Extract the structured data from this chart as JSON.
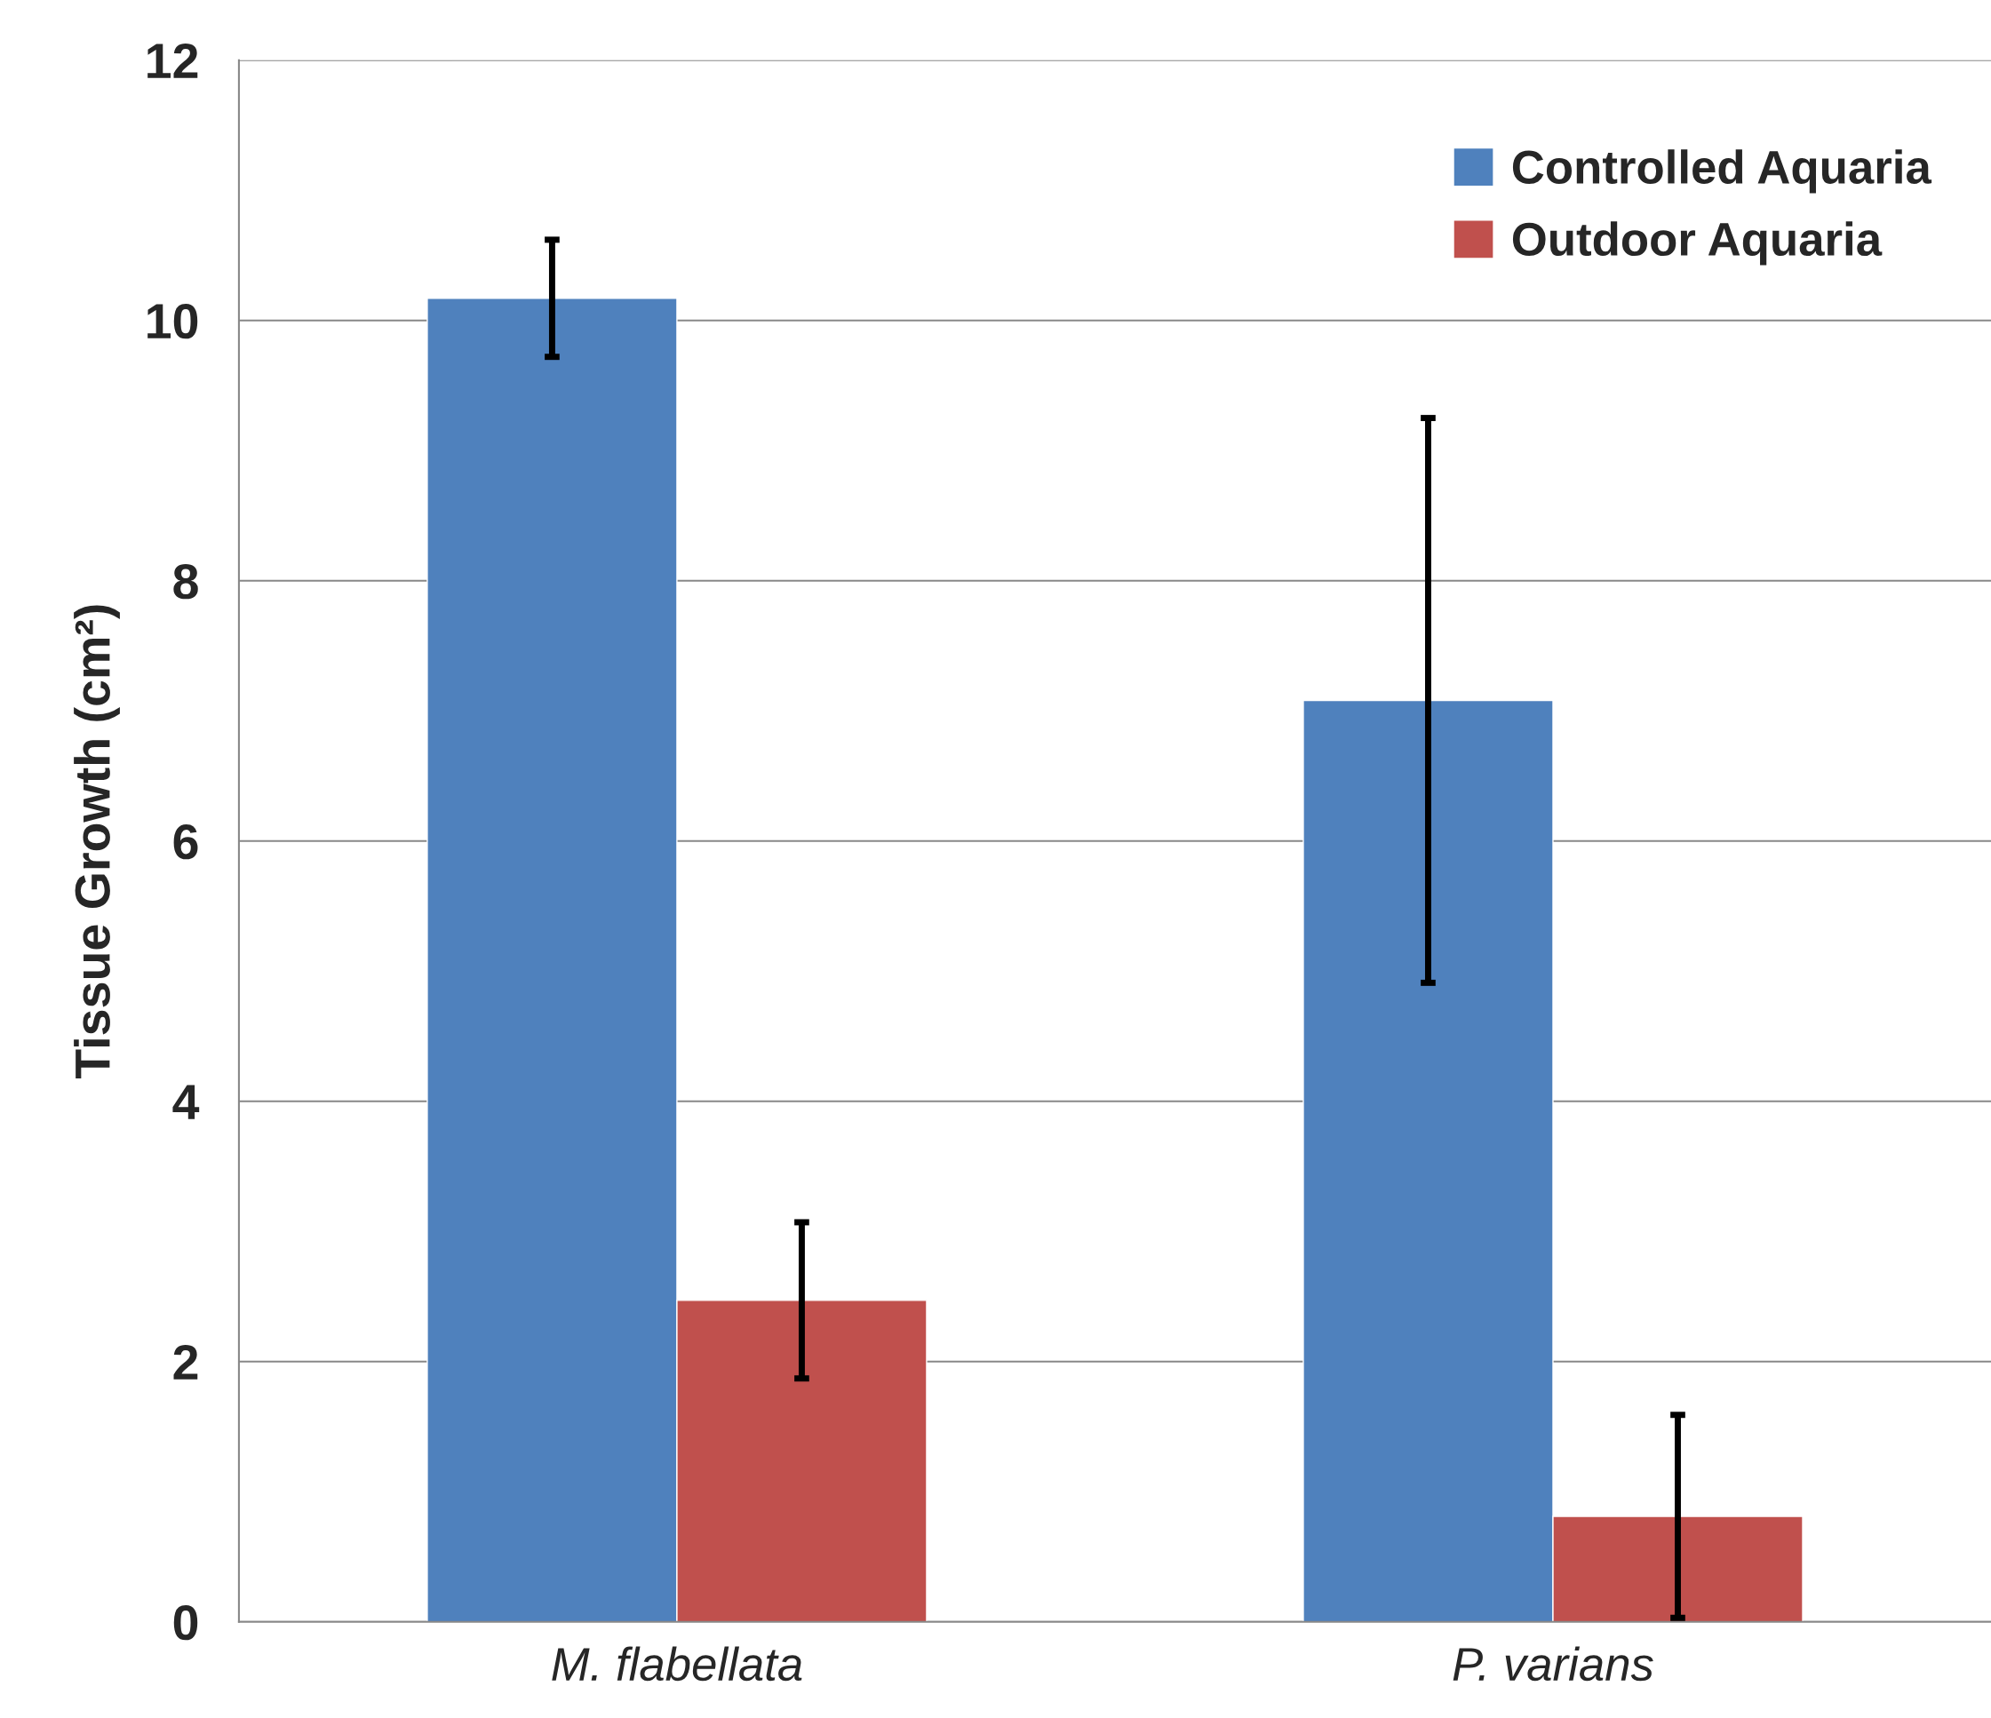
{
  "chart_data": {
    "type": "bar",
    "ylabel": "Tissue Growth (cm²)",
    "categories": [
      "M. flabellata",
      "P. varians"
    ],
    "series": [
      {
        "name": "Controlled Aquaria",
        "color": "#4f81bd",
        "values": [
          10.17,
          7.08
        ],
        "errors": [
          0.45,
          2.17
        ]
      },
      {
        "name": "Outdoor Aquaria",
        "color": "#c0504d",
        "values": [
          2.47,
          0.81
        ],
        "errors": [
          0.6,
          0.78
        ]
      }
    ],
    "ylim": [
      0,
      12
    ],
    "yticks": [
      0,
      2,
      4,
      6,
      8,
      10,
      12
    ],
    "grid": "y",
    "legend": "top right"
  }
}
